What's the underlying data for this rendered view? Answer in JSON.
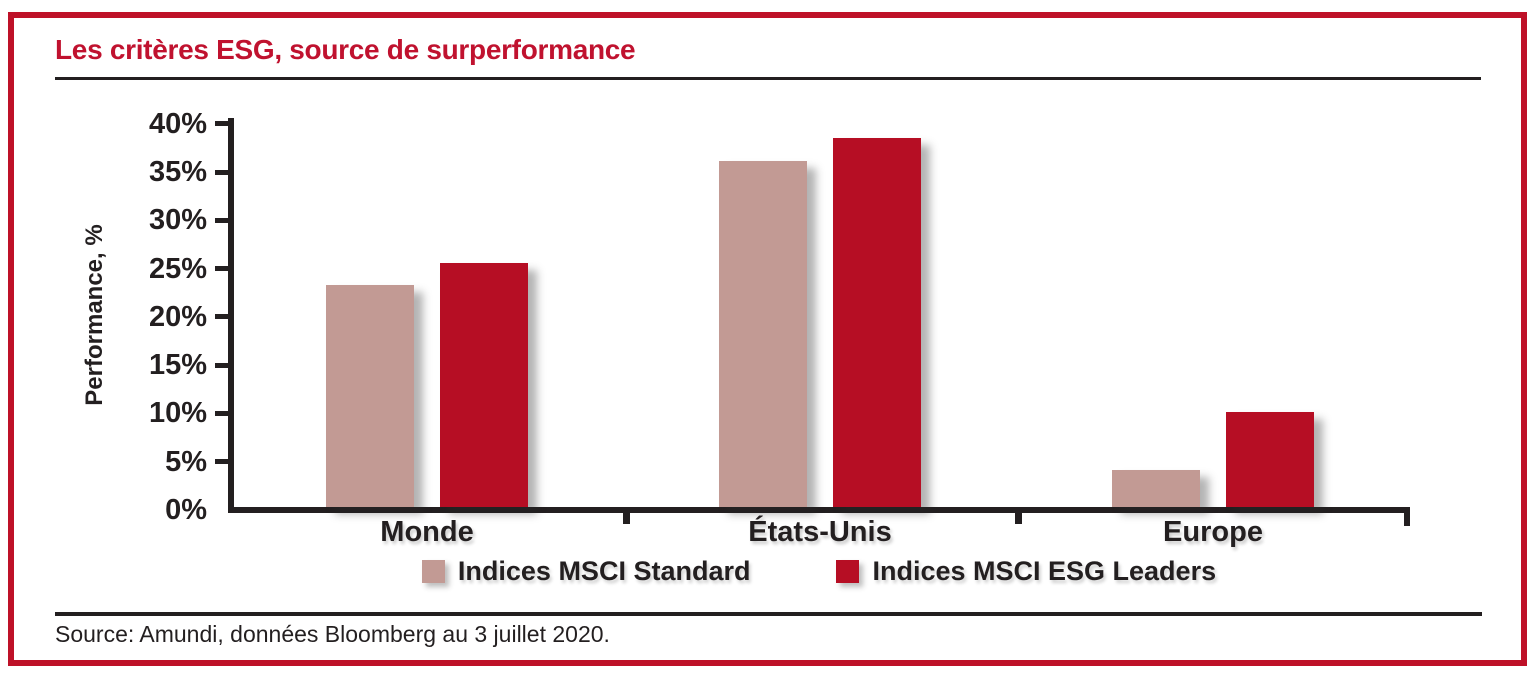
{
  "title": "Les critères ESG, source de surperformance",
  "source": "Source: Amundi, données Bloomberg au 3 juillet 2020.",
  "colors": {
    "frame_red": "#BE1128",
    "title_red": "#C0122F",
    "bar_standard_beige": "#C29A94",
    "bar_esg_red": "#B60E24",
    "axis_black": "#231F20"
  },
  "chart_data": {
    "type": "bar",
    "title": "Les critères ESG, source de surperformance",
    "categories": [
      "Monde",
      "États-Unis",
      "Europe"
    ],
    "series": [
      {
        "name": "Indices MSCI Standard",
        "color": "#C29A94",
        "values": [
          23,
          35.8,
          3.8
        ]
      },
      {
        "name": "Indices MSCI ESG Leaders",
        "color": "#B60E24",
        "values": [
          25.3,
          38.2,
          9.8
        ]
      }
    ],
    "ylabel": "Performance, %",
    "xlabel": "",
    "ylim": [
      0,
      40
    ],
    "ytick_step": 5,
    "ytick_labels": [
      "0%",
      "5%",
      "10%",
      "15%",
      "20%",
      "25%",
      "30%",
      "35%",
      "40%"
    ],
    "grid": false,
    "legend_position": "bottom"
  }
}
